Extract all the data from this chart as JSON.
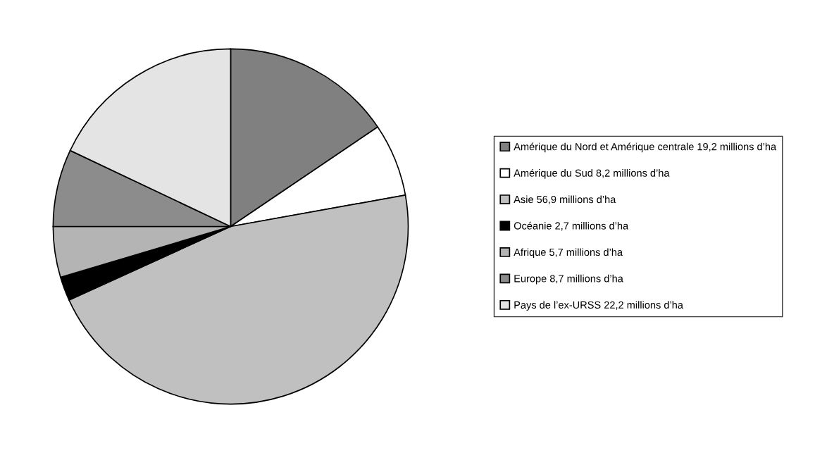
{
  "chart_data": {
    "type": "pie",
    "categories": [
      "Amérique du Nord et Amérique centrale",
      "Amérique du Sud",
      "Asie",
      "Océanie",
      "Afrique",
      "Europe",
      "Pays de l’ex-URSS"
    ],
    "values": [
      19.2,
      8.2,
      56.9,
      2.7,
      5.7,
      8.7,
      22.2
    ],
    "value_labels": [
      "19,2 millions d’ha",
      "8,2 millions d’ha",
      "56,9 millions d’ha",
      "2,7 millions d’ha",
      "5,7 millions d’ha",
      "8,7 millions d’ha",
      "22,2 millions d’ha"
    ],
    "colors": [
      "#808080",
      "#ffffff",
      "#c0c0c0",
      "#000000",
      "#b4b4b4",
      "#8c8c8c",
      "#e4e4e4"
    ],
    "legend": "right"
  }
}
